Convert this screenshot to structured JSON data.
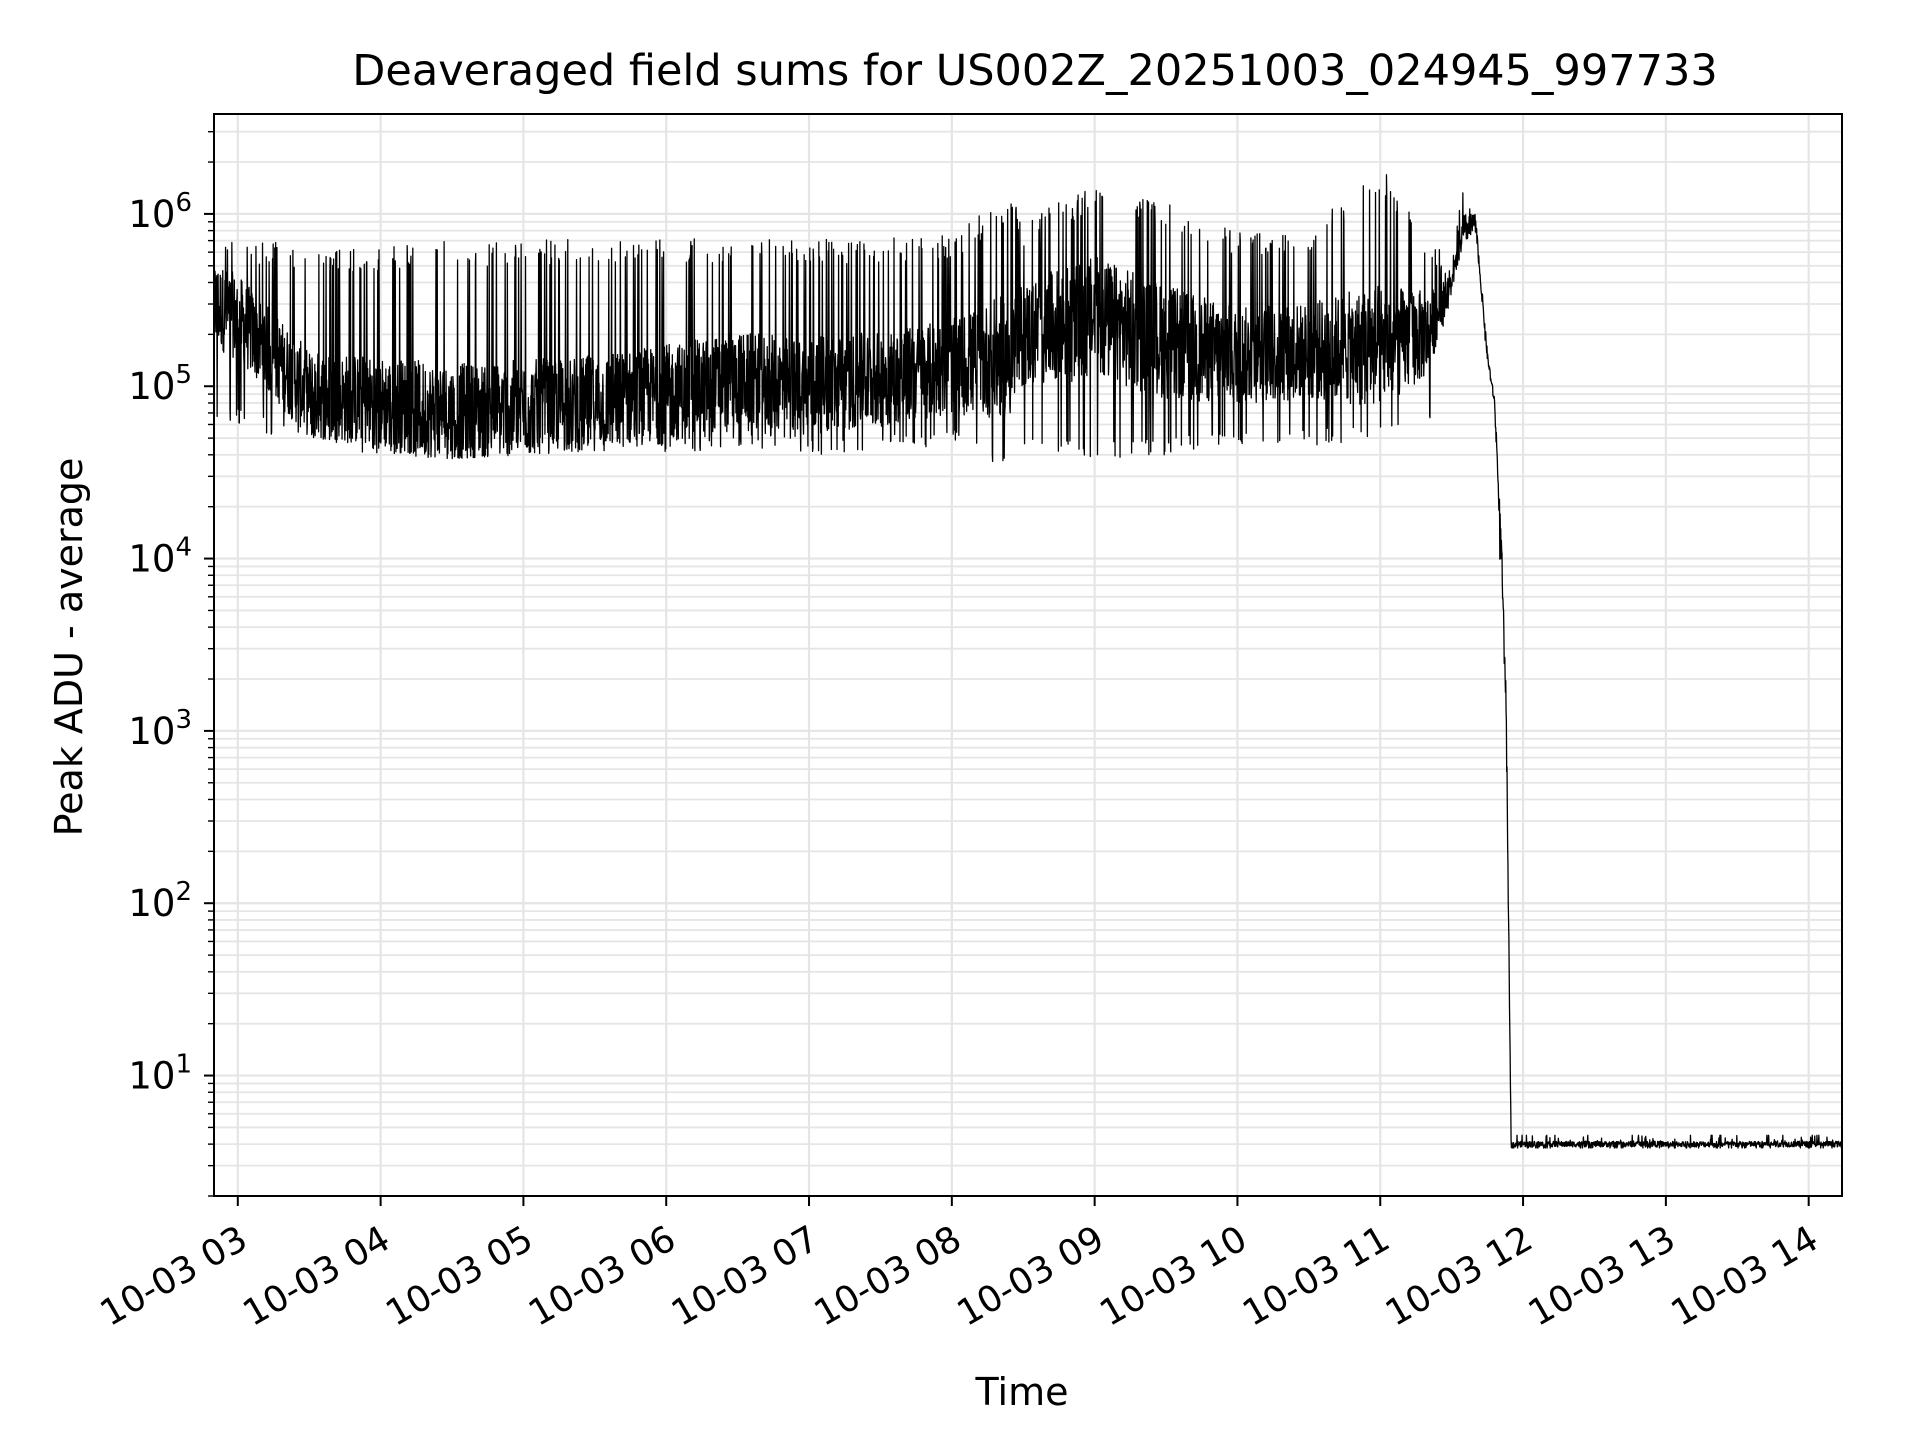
{
  "chart_data": {
    "type": "line",
    "title": "Deaveraged field sums for US002Z_20251003_024945_997733",
    "xlabel": "Time",
    "ylabel": "Peak ADU - average",
    "x_axis": "time",
    "x_ticks": [
      "2025-10-03T03:00",
      "2025-10-03T04:00",
      "2025-10-03T05:00",
      "2025-10-03T06:00",
      "2025-10-03T07:00",
      "2025-10-03T08:00",
      "2025-10-03T09:00",
      "2025-10-03T10:00",
      "2025-10-03T11:00",
      "2025-10-03T12:00",
      "2025-10-03T13:00",
      "2025-10-03T14:00"
    ],
    "x_tick_labels": [
      "10-03 03",
      "10-03 04",
      "10-03 05",
      "10-03 06",
      "10-03 07",
      "10-03 08",
      "10-03 09",
      "10-03 10",
      "10-03 11",
      "10-03 12",
      "10-03 13",
      "10-03 14"
    ],
    "xlim": [
      "2025-10-03T02:50",
      "2025-10-03T14:14"
    ],
    "y_scale": "log",
    "ylim": [
      2,
      3800000
    ],
    "y_ticks": [
      10,
      100,
      1000,
      10000,
      100000,
      1000000
    ],
    "y_tick_labels": [
      {
        "base": "10",
        "exp": "1"
      },
      {
        "base": "10",
        "exp": "2"
      },
      {
        "base": "10",
        "exp": "3"
      },
      {
        "base": "10",
        "exp": "4"
      },
      {
        "base": "10",
        "exp": "5"
      },
      {
        "base": "10",
        "exp": "6"
      }
    ],
    "grid": true,
    "line_color": "#000000",
    "grid_color": "#e5e5e5",
    "series": [
      {
        "x": [
          "2025-10-03T02:50",
          "2025-10-03T03:00",
          "2025-10-03T03:15",
          "2025-10-03T03:30",
          "2025-10-03T04:00",
          "2025-10-03T04:30",
          "2025-10-03T05:00",
          "2025-10-03T05:30",
          "2025-10-03T06:00",
          "2025-10-03T06:30",
          "2025-10-03T07:00",
          "2025-10-03T07:30",
          "2025-10-03T08:00",
          "2025-10-03T08:25",
          "2025-10-03T08:30",
          "2025-10-03T09:00",
          "2025-10-03T09:30",
          "2025-10-03T10:00",
          "2025-10-03T10:30",
          "2025-10-03T11:00",
          "2025-10-03T11:20",
          "2025-10-03T11:30",
          "2025-10-03T11:35",
          "2025-10-03T11:40",
          "2025-10-03T11:45",
          "2025-10-03T11:48",
          "2025-10-03T11:51",
          "2025-10-03T11:53",
          "2025-10-03T11:55",
          "2025-10-03T12:00",
          "2025-10-03T13:00",
          "2025-10-03T14:14"
        ],
        "y": [
          300000,
          250000,
          150000,
          90000,
          80000,
          70000,
          75000,
          80000,
          90000,
          110000,
          100000,
          110000,
          130000,
          150000,
          200000,
          250000,
          180000,
          150000,
          160000,
          170000,
          200000,
          400000,
          800000,
          900000,
          150000,
          80000,
          10000,
          1000,
          4,
          4,
          4,
          4
        ],
        "y_low": [
          60000,
          60000,
          50000,
          45000,
          40000,
          38000,
          40000,
          42000,
          38000,
          45000,
          40000,
          42000,
          45000,
          30000,
          40000,
          38000,
          40000,
          45000,
          45000,
          48000,
          55000,
          350000,
          700000,
          700000,
          130000,
          70000,
          5000,
          500,
          3.8,
          3.8,
          3.8,
          3.8
        ],
        "y_high": [
          800000,
          750000,
          700000,
          600000,
          650000,
          700000,
          700000,
          720000,
          720000,
          720000,
          720000,
          720000,
          750000,
          1350000,
          900000,
          1500000,
          1200000,
          800000,
          800000,
          1950000,
          700000,
          550000,
          1900000,
          1100000,
          180000,
          90000,
          15000,
          1500,
          4.5,
          4.5,
          4.5,
          4.5
        ]
      }
    ]
  }
}
